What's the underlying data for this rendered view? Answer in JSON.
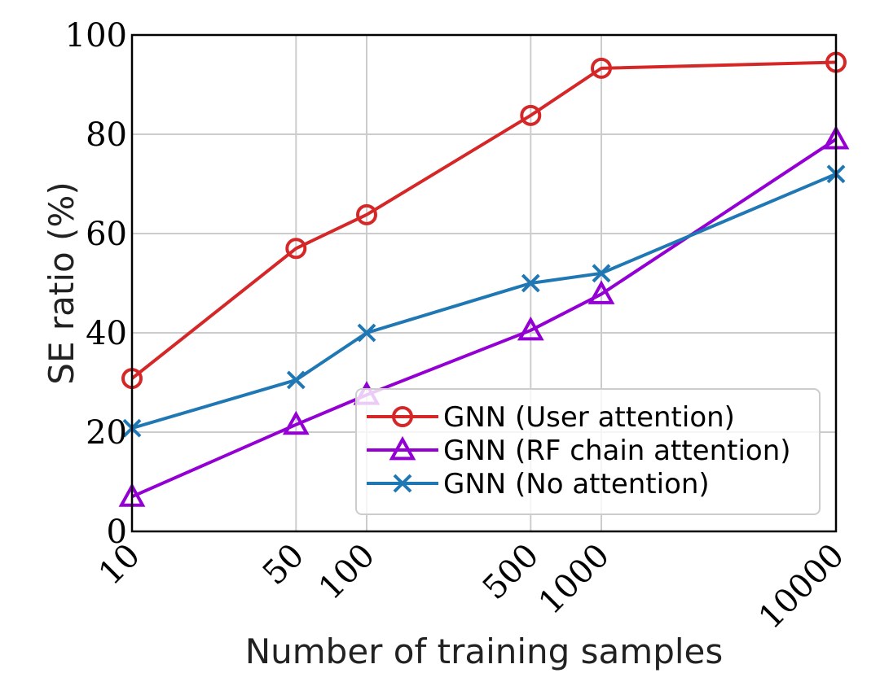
{
  "chart_data": {
    "type": "line",
    "title": "",
    "xlabel": "Number of training samples",
    "ylabel": "SE ratio (%)",
    "xscale": "log",
    "xlim": [
      10,
      10000
    ],
    "ylim": [
      0,
      100
    ],
    "xticks": [
      10,
      50,
      100,
      500,
      1000,
      10000
    ],
    "xtick_labels": [
      "10",
      "50",
      "100",
      "500",
      "1000",
      "10000"
    ],
    "yticks": [
      0,
      20,
      40,
      60,
      80,
      100
    ],
    "ytick_labels": [
      "0",
      "20",
      "40",
      "60",
      "80",
      "100"
    ],
    "grid": true,
    "legend_position": "bottom-right",
    "x": [
      10,
      50,
      100,
      500,
      1000,
      10000
    ],
    "series": [
      {
        "name": "GNN (User attention)",
        "color": "#d62728",
        "marker": "circle",
        "values": [
          30.8,
          57.0,
          63.8,
          83.8,
          93.3,
          94.5
        ]
      },
      {
        "name": "GNN (RF chain attention)",
        "color": "#9400d3",
        "marker": "triangle",
        "values": [
          7.0,
          21.5,
          27.5,
          40.5,
          47.8,
          79.0
        ]
      },
      {
        "name": "GNN (No attention)",
        "color": "#1f77b4",
        "marker": "x",
        "values": [
          20.8,
          30.5,
          40.0,
          50.0,
          52.0,
          72.0
        ]
      }
    ]
  }
}
